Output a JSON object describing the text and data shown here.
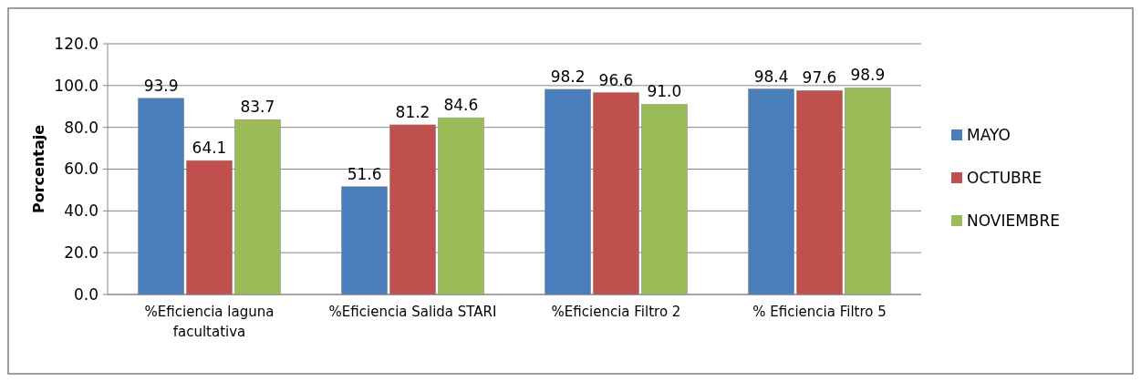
{
  "chart_data": {
    "type": "bar",
    "ylabel": "Porcentaje",
    "categories": [
      "%Eficiencia laguna facultativa",
      "%Eficiencia Salida STARI",
      "%Eficiencia Filtro 2",
      "% Eficiencia Filtro 5"
    ],
    "series": [
      {
        "name": "MAYO",
        "color": "#4a7ebb",
        "values": [
          93.9,
          51.6,
          98.2,
          98.4
        ],
        "value_labels": [
          "93.9",
          "51.6",
          "98.2",
          "98.4"
        ]
      },
      {
        "name": "OCTUBRE",
        "color": "#c0504d",
        "values": [
          64.1,
          81.2,
          96.6,
          97.6
        ],
        "value_labels": [
          "64.1",
          "81.2",
          "96.6",
          "97.6"
        ]
      },
      {
        "name": "NOVIEMBRE",
        "color": "#9bbb59",
        "values": [
          83.7,
          84.6,
          91.0,
          98.9
        ],
        "value_labels": [
          "83.7",
          "84.6",
          "91.0",
          "98.9"
        ]
      }
    ],
    "ylim": [
      0,
      120
    ],
    "yticks": [
      {
        "value": 0,
        "label": "0.0"
      },
      {
        "value": 20,
        "label": "20.0"
      },
      {
        "value": 40,
        "label": "40.0"
      },
      {
        "value": 60,
        "label": "60.0"
      },
      {
        "value": 80,
        "label": "80.0"
      },
      {
        "value": 100,
        "label": "100.0"
      },
      {
        "value": 120,
        "label": "120.0"
      }
    ],
    "grid": "y",
    "legend": "right"
  }
}
